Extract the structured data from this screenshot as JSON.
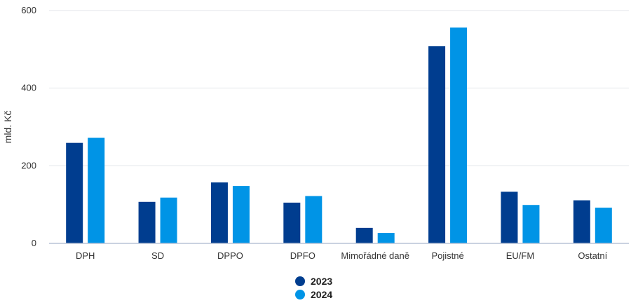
{
  "chart_data": {
    "type": "bar",
    "categories": [
      "DPH",
      "SD",
      "DPPO",
      "DPFO",
      "Mimořádné daně",
      "Pojistné",
      "EU/FM",
      "Ostatní"
    ],
    "series": [
      {
        "name": "2023",
        "color": "#003d8f",
        "values": [
          259,
          107,
          157,
          105,
          40,
          508,
          133,
          111
        ]
      },
      {
        "name": "2024",
        "color": "#0094e6",
        "values": [
          272,
          118,
          148,
          122,
          27,
          556,
          99,
          92
        ]
      }
    ],
    "ylabel": "mld. Kč",
    "ylim": [
      0,
      600
    ],
    "yticks": [
      0,
      200,
      400,
      600
    ],
    "grid": true,
    "legend_position": "bottom-center"
  }
}
